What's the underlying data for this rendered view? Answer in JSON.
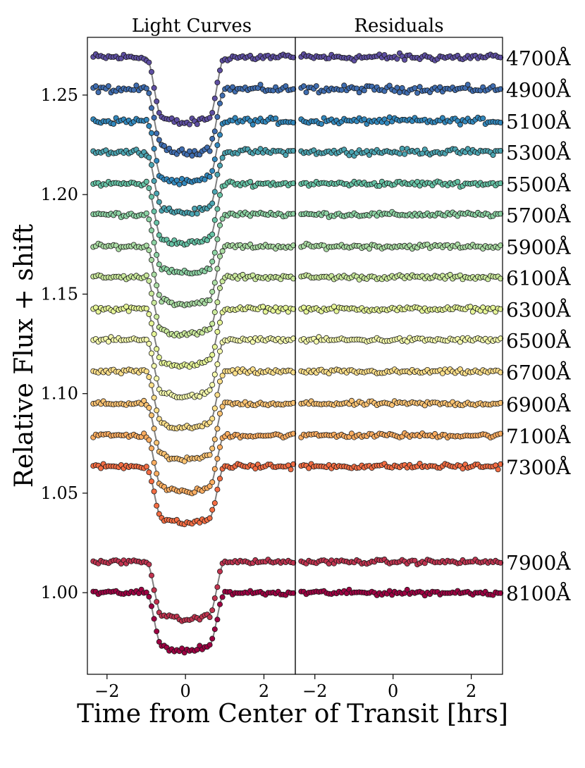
{
  "chart_data": {
    "type": "scatter",
    "panels": [
      {
        "name": "light_curves",
        "title": "Light Curves",
        "shows_model_line": true
      },
      {
        "name": "residuals",
        "title": "Residuals",
        "shows_model_line": false
      }
    ],
    "xlabel": "Time from Center of Transit [hrs]",
    "ylabel": "Relative Flux + shift",
    "xlim": [
      -2.5,
      2.8
    ],
    "ylim": [
      0.959,
      1.279
    ],
    "x_ticks": [
      -2,
      0,
      2
    ],
    "x_tick_labels": [
      "−2",
      "0",
      "2"
    ],
    "y_ticks": [
      1.0,
      1.05,
      1.1,
      1.15,
      1.2,
      1.25
    ],
    "y_tick_labels": [
      "1.00",
      "1.05",
      "1.10",
      "1.15",
      "1.20",
      "1.25"
    ],
    "grid": false,
    "legend": "none",
    "x_samples": {
      "start": -2.35,
      "stop": 2.75,
      "count": 80
    },
    "transit_shape": {
      "ingress_egress_hours": [
        1.0,
        0.6
      ]
    },
    "series": [
      {
        "name": "4700Å",
        "baseline": 1.269,
        "depth": 0.033,
        "noise": 0.0013,
        "color": "#5e4fa2"
      },
      {
        "name": "4900Å",
        "baseline": 1.253,
        "depth": 0.032,
        "noise": 0.0012,
        "color": "#3f6db0"
      },
      {
        "name": "5100Å",
        "baseline": 1.237,
        "depth": 0.031,
        "noise": 0.0011,
        "color": "#3288bd"
      },
      {
        "name": "5300Å",
        "baseline": 1.2215,
        "depth": 0.0305,
        "noise": 0.001,
        "color": "#4ba4b1"
      },
      {
        "name": "5500Å",
        "baseline": 1.2055,
        "depth": 0.03,
        "noise": 0.0009,
        "color": "#66c2a5"
      },
      {
        "name": "5700Å",
        "baseline": 1.19,
        "depth": 0.0295,
        "noise": 0.0008,
        "color": "#8dd3a4"
      },
      {
        "name": "5900Å",
        "baseline": 1.174,
        "depth": 0.029,
        "noise": 0.0008,
        "color": "#abdda4"
      },
      {
        "name": "6100Å",
        "baseline": 1.1585,
        "depth": 0.0288,
        "noise": 0.0008,
        "color": "#cbea9d"
      },
      {
        "name": "6300Å",
        "baseline": 1.1425,
        "depth": 0.0285,
        "noise": 0.0008,
        "color": "#e6f598"
      },
      {
        "name": "6500Å",
        "baseline": 1.127,
        "depth": 0.0285,
        "noise": 0.0008,
        "color": "#f5faae"
      },
      {
        "name": "6700Å",
        "baseline": 1.111,
        "depth": 0.0283,
        "noise": 0.0008,
        "color": "#fee08b"
      },
      {
        "name": "6900Å",
        "baseline": 1.095,
        "depth": 0.0283,
        "noise": 0.0008,
        "color": "#fdc473"
      },
      {
        "name": "7100Å",
        "baseline": 1.079,
        "depth": 0.0283,
        "noise": 0.0008,
        "color": "#fdae61"
      },
      {
        "name": "7300Å",
        "baseline": 1.0635,
        "depth": 0.0285,
        "noise": 0.0009,
        "color": "#f46d43"
      },
      {
        "name": "7900Å",
        "baseline": 1.0155,
        "depth": 0.029,
        "noise": 0.0008,
        "color": "#c0334f"
      },
      {
        "name": "8100Å",
        "baseline": 1.0,
        "depth": 0.029,
        "noise": 0.0009,
        "color": "#9e0142"
      }
    ]
  }
}
